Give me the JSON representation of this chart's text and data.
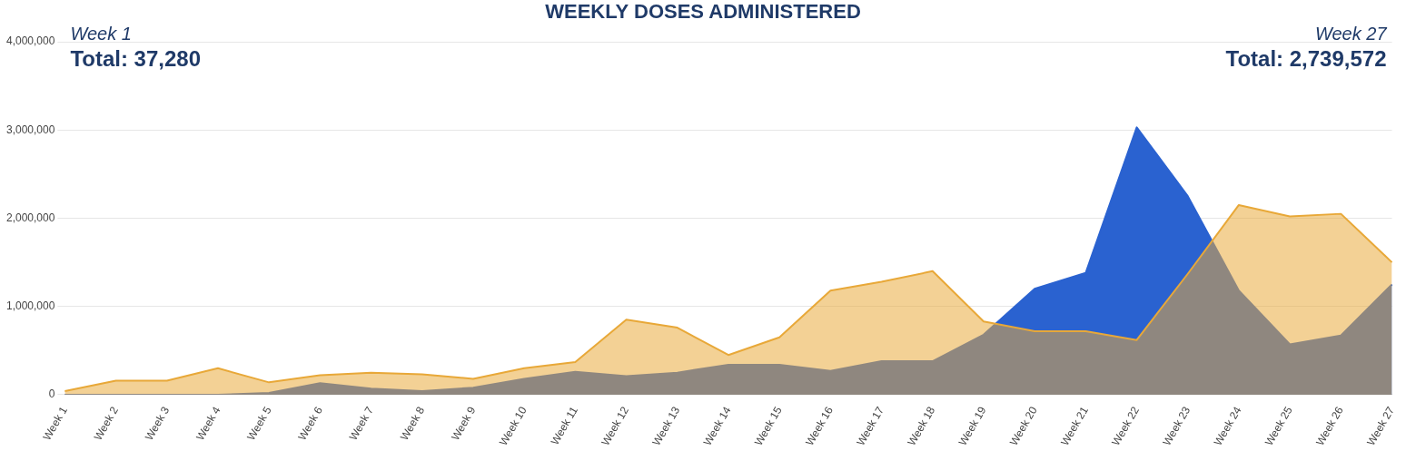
{
  "chart_data": {
    "type": "area",
    "title": "WEEKLY DOSES ADMINISTERED",
    "categories": [
      "Week 1",
      "Week 2",
      "Week 3",
      "Week 4",
      "Week 5",
      "Week 6",
      "Week 7",
      "Week 8",
      "Week 9",
      "Week 10",
      "Week 11",
      "Week 12",
      "Week 13",
      "Week 14",
      "Week 15",
      "Week 16",
      "Week 17",
      "Week 18",
      "Week 19",
      "Week 20",
      "Week 21",
      "Week 22",
      "Week 23",
      "Week 24",
      "Week 25",
      "Week 26",
      "Week 27"
    ],
    "series": [
      {
        "color": "#2a62d0",
        "values": [
          0,
          0,
          0,
          0,
          20000,
          130000,
          70000,
          40000,
          80000,
          180000,
          260000,
          210000,
          250000,
          340000,
          340000,
          270000,
          380000,
          380000,
          680000,
          1200000,
          1380000,
          3030000,
          2250000,
          1180000,
          570000,
          670000,
          1250000
        ]
      },
      {
        "color": "#e8a838",
        "values": [
          40000,
          160000,
          160000,
          300000,
          140000,
          220000,
          250000,
          230000,
          180000,
          300000,
          370000,
          850000,
          760000,
          450000,
          650000,
          1180000,
          1280000,
          1400000,
          830000,
          720000,
          720000,
          620000,
          1370000,
          2150000,
          2020000,
          2050000,
          1500000
        ]
      }
    ],
    "ylim": [
      0,
      4000000
    ],
    "yticks": [
      0,
      {
        "value": 1000000,
        "label": "1,000,000"
      },
      {
        "value": 2000000,
        "label": "2,000,000"
      },
      {
        "value": 3000000,
        "label": "3,000,000"
      },
      {
        "value": 4000000,
        "label": "4,000,000"
      }
    ],
    "grid": "y",
    "legend": false,
    "marker": "none",
    "annotations": [
      "Week 1",
      "Total: 37,280",
      "Week 27",
      "Total: 2,739,572"
    ]
  }
}
